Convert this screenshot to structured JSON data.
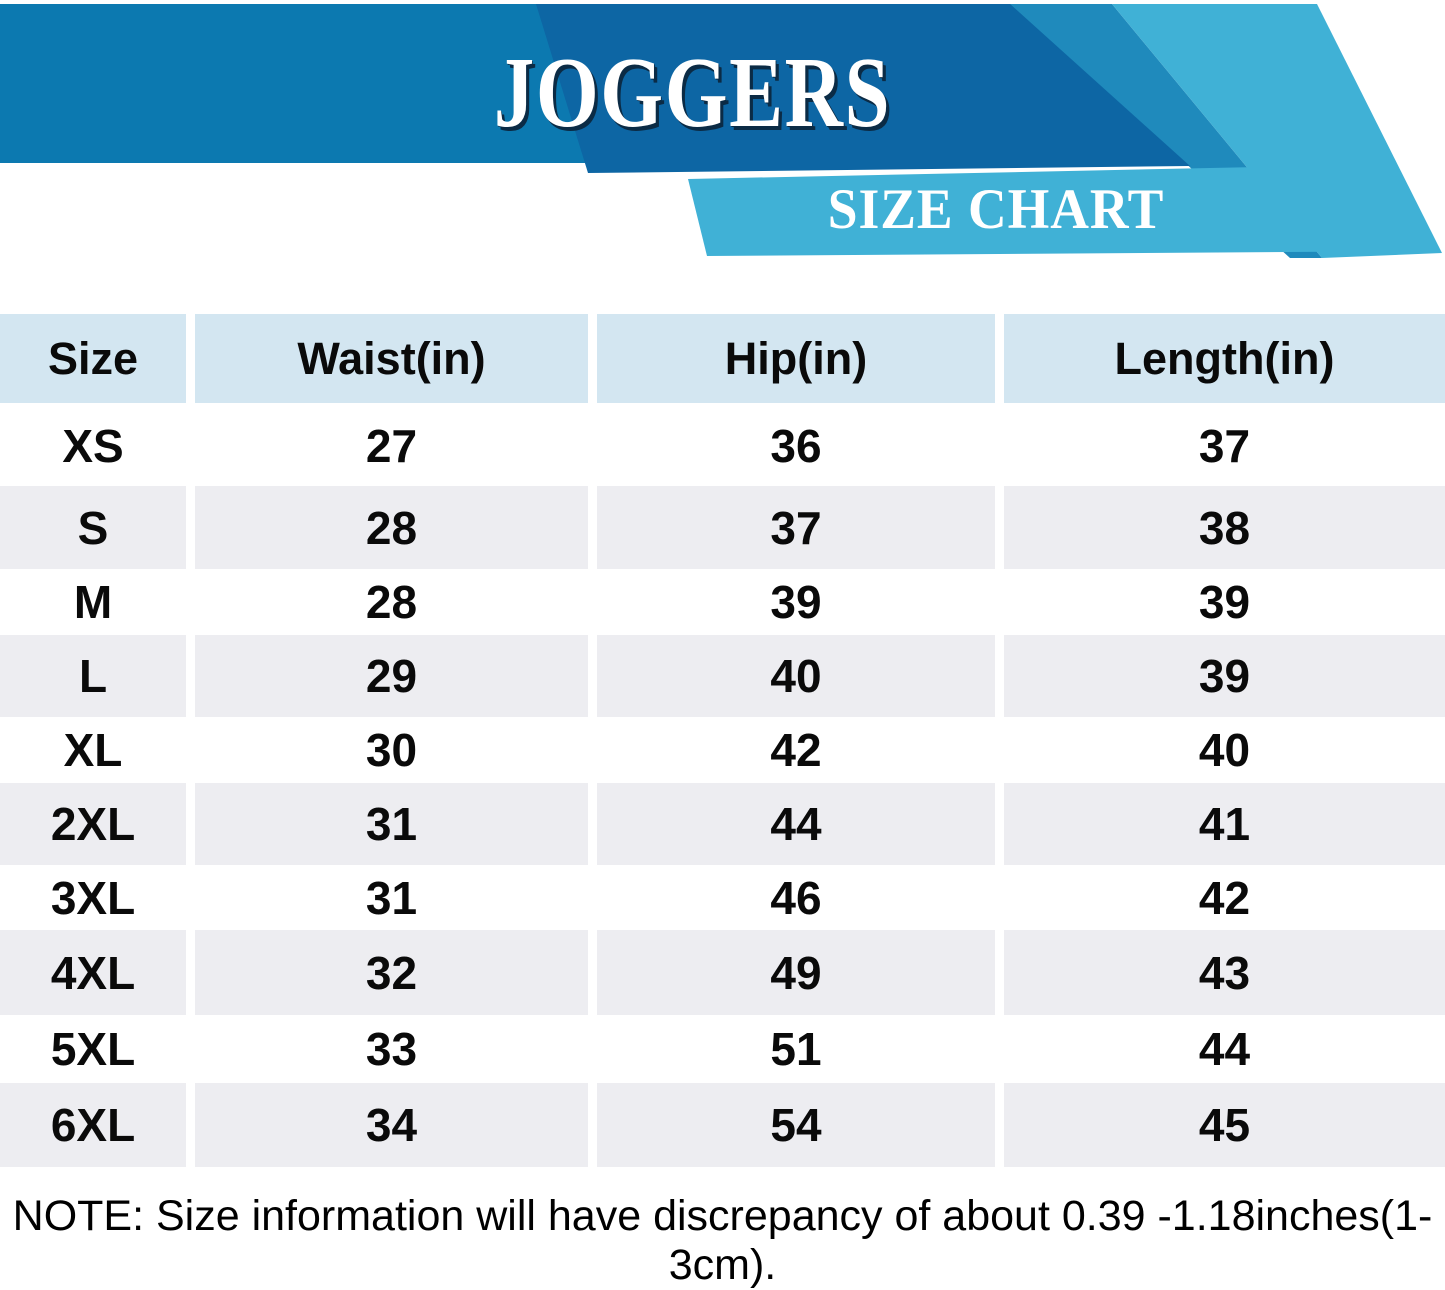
{
  "header": {
    "title": "JOGGERS",
    "subtitle": "SIZE CHART"
  },
  "colors": {
    "band_blue": "#0c79b0",
    "dark_blue": "#0d66a4",
    "wedge_blue": "#1f8abc",
    "cyan": "#40b1d6",
    "header_cell": "#d3e6f1",
    "row_alt": "#ededf1",
    "text": "#0a0a0a"
  },
  "table": {
    "columns": [
      "Size",
      "Waist(in)",
      "Hip(in)",
      "Length(in)"
    ],
    "rows": [
      {
        "size": "XS",
        "waist": "27",
        "hip": "36",
        "length": "37"
      },
      {
        "size": "S",
        "waist": "28",
        "hip": "37",
        "length": "38"
      },
      {
        "size": "M",
        "waist": "28",
        "hip": "39",
        "length": "39"
      },
      {
        "size": "L",
        "waist": "29",
        "hip": "40",
        "length": "39"
      },
      {
        "size": "XL",
        "waist": "30",
        "hip": "42",
        "length": "40"
      },
      {
        "size": "2XL",
        "waist": "31",
        "hip": "44",
        "length": "41"
      },
      {
        "size": "3XL",
        "waist": "31",
        "hip": "46",
        "length": "42"
      },
      {
        "size": "4XL",
        "waist": "32",
        "hip": "49",
        "length": "43"
      },
      {
        "size": "5XL",
        "waist": "33",
        "hip": "51",
        "length": "44"
      },
      {
        "size": "6XL",
        "waist": "34",
        "hip": "54",
        "length": "45"
      }
    ]
  },
  "note": "NOTE: Size information will have discrepancy of about 0.39 -1.18inches(1-3cm).",
  "chart_data": {
    "type": "table",
    "title": "JOGGERS",
    "subtitle": "SIZE CHART",
    "columns": [
      "Size",
      "Waist(in)",
      "Hip(in)",
      "Length(in)"
    ],
    "rows": [
      [
        "XS",
        27,
        36,
        37
      ],
      [
        "S",
        28,
        37,
        38
      ],
      [
        "M",
        28,
        39,
        39
      ],
      [
        "L",
        29,
        40,
        39
      ],
      [
        "XL",
        30,
        42,
        40
      ],
      [
        "2XL",
        31,
        44,
        41
      ],
      [
        "3XL",
        31,
        46,
        42
      ],
      [
        "4XL",
        32,
        49,
        43
      ],
      [
        "5XL",
        33,
        51,
        44
      ],
      [
        "6XL",
        34,
        54,
        45
      ]
    ],
    "note": "NOTE: Size information will have discrepancy of about 0.39 -1.18inches(1-3cm)."
  }
}
